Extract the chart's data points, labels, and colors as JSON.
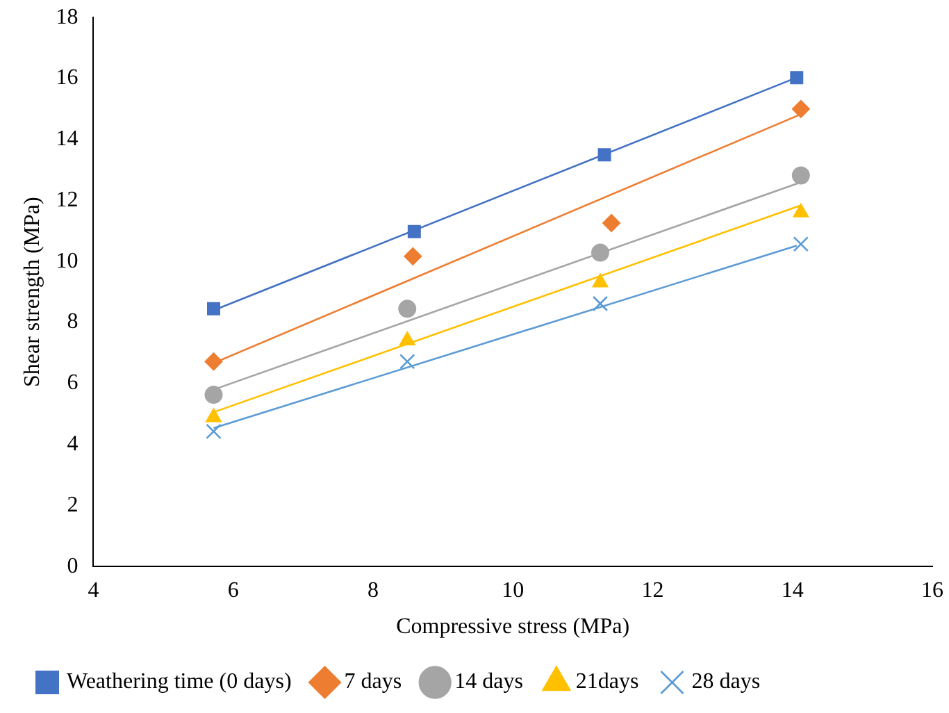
{
  "chart_data": {
    "type": "scatter",
    "xlabel": "Compressive stress (MPa)",
    "ylabel": "Shear strength (MPa)",
    "xlim": [
      4,
      16
    ],
    "xticks": [
      4,
      6,
      8,
      10,
      12,
      14,
      16
    ],
    "ylim": [
      0,
      18
    ],
    "yticks": [
      0,
      2,
      4,
      6,
      8,
      10,
      12,
      14,
      16,
      18
    ],
    "grid": false,
    "legend": "bottom",
    "series": [
      {
        "name": "Weathering time (0 days)",
        "color": "#4472c4",
        "marker": "square",
        "x": [
          5.72,
          8.59,
          11.31,
          14.06
        ],
        "values": [
          8.45,
          10.98,
          13.5,
          16.03
        ]
      },
      {
        "name": "7 days",
        "color": "#ed7d31",
        "marker": "diamond",
        "x": [
          5.72,
          8.57,
          11.41,
          14.12
        ],
        "values": [
          6.72,
          10.17,
          11.26,
          15.0
        ]
      },
      {
        "name": "14 days",
        "color": "#a5a5a5",
        "marker": "circle",
        "x": [
          5.72,
          8.49,
          11.25,
          14.12
        ],
        "values": [
          5.63,
          8.45,
          10.29,
          12.82
        ]
      },
      {
        "name": "21days",
        "color": "#ffc000",
        "marker": "triangle",
        "x": [
          5.72,
          8.49,
          11.25,
          14.12
        ],
        "values": [
          4.89,
          7.41,
          9.31,
          11.61
        ]
      },
      {
        "name": "28 days",
        "color": "#5b9bd5",
        "marker": "cross",
        "x": [
          5.72,
          8.49,
          11.25,
          14.12
        ],
        "values": [
          4.43,
          6.72,
          8.62,
          10.57
        ]
      },
      {
        "type": "line",
        "color": "#4472c4",
        "marker": "none",
        "x": [
          5.72,
          14.06
        ],
        "values": [
          8.4,
          16.03
        ]
      },
      {
        "type": "line",
        "color": "#ed7d31",
        "marker": "none",
        "x": [
          5.72,
          14.12
        ],
        "values": [
          6.67,
          14.83
        ]
      },
      {
        "type": "line",
        "color": "#a5a5a5",
        "marker": "none",
        "x": [
          5.72,
          14.12
        ],
        "values": [
          5.8,
          12.6
        ]
      },
      {
        "type": "line",
        "color": "#ffc000",
        "marker": "none",
        "x": [
          5.72,
          14.12
        ],
        "values": [
          5.06,
          11.84
        ]
      },
      {
        "type": "line",
        "color": "#5b9bd5",
        "marker": "none",
        "x": [
          5.72,
          14.06
        ],
        "values": [
          4.54,
          10.52
        ]
      }
    ]
  }
}
